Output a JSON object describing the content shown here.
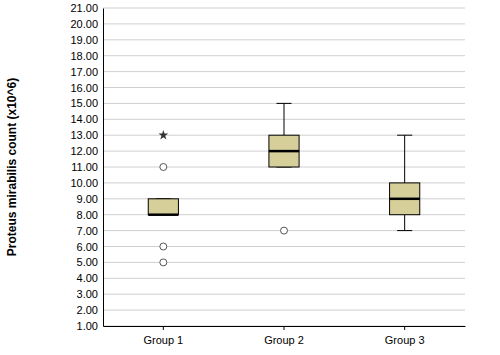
{
  "chart_data": {
    "type": "box",
    "y_label": "Proteus mirabilis count (x10^6)",
    "categories": [
      "Group 1",
      "Group 2",
      "Group 3"
    ],
    "boxes": [
      {
        "whisker_low": 8,
        "q1": 8,
        "median": 8,
        "q3": 9,
        "whisker_high": 9,
        "outliers": [
          11,
          6,
          5
        ],
        "extremes": [
          13
        ]
      },
      {
        "whisker_low": 11,
        "q1": 11,
        "median": 12,
        "q3": 13,
        "whisker_high": 15,
        "outliers": [
          7
        ],
        "extremes": []
      },
      {
        "whisker_low": 7,
        "q1": 8,
        "median": 9,
        "q3": 10,
        "whisker_high": 13,
        "outliers": [],
        "extremes": []
      }
    ],
    "color": "#d6cf9a",
    "ylim": [
      1,
      21
    ],
    "yticks": [
      {
        "value": 1,
        "label": "1.00"
      },
      {
        "value": 2,
        "label": "2.00"
      },
      {
        "value": 3,
        "label": "3.00"
      },
      {
        "value": 4,
        "label": "4.00"
      },
      {
        "value": 5,
        "label": "5.00"
      },
      {
        "value": 6,
        "label": "6.00"
      },
      {
        "value": 7,
        "label": "7.00"
      },
      {
        "value": 8,
        "label": "8.00"
      },
      {
        "value": 9,
        "label": "9.00"
      },
      {
        "value": 10,
        "label": "10.00"
      },
      {
        "value": 11,
        "label": "11.00"
      },
      {
        "value": 12,
        "label": "12.00"
      },
      {
        "value": 13,
        "label": "13.00"
      },
      {
        "value": 14,
        "label": "14.00"
      },
      {
        "value": 15,
        "label": "15.00"
      },
      {
        "value": 16,
        "label": "16.00"
      },
      {
        "value": 17,
        "label": "17.00"
      },
      {
        "value": 18,
        "label": "18.00"
      },
      {
        "value": 19,
        "label": "19.00"
      },
      {
        "value": 20,
        "label": "20.00"
      },
      {
        "value": 21,
        "label": "21.00"
      }
    ],
    "grid": true
  }
}
